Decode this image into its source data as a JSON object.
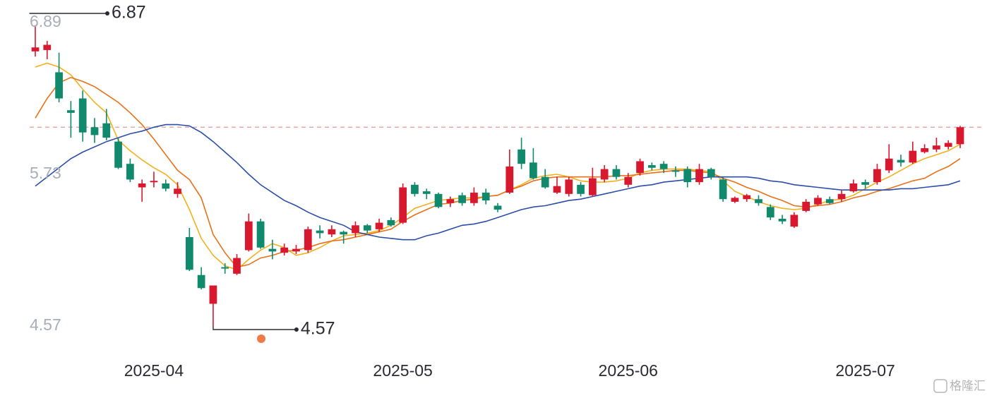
{
  "chart_data": {
    "type": "candlestick",
    "categories": [
      null,
      null,
      null,
      null,
      null,
      null,
      null,
      null,
      null,
      null,
      "2025-04",
      null,
      null,
      null,
      null,
      null,
      null,
      null,
      null,
      null,
      null,
      null,
      null,
      null,
      null,
      null,
      null,
      null,
      null,
      null,
      null,
      "2025-05",
      null,
      null,
      null,
      null,
      null,
      null,
      null,
      null,
      null,
      null,
      null,
      null,
      null,
      null,
      null,
      null,
      null,
      null,
      "2025-06",
      null,
      null,
      null,
      null,
      null,
      null,
      null,
      null,
      null,
      null,
      null,
      null,
      null,
      null,
      null,
      null,
      null,
      null,
      null,
      "2025-07",
      null,
      null,
      null,
      null,
      null,
      null,
      null,
      null
    ],
    "open": [
      6.67,
      6.68,
      6.51,
      6.22,
      6.31,
      6.09,
      6.12,
      5.98,
      5.81,
      5.63,
      5.67,
      5.66,
      5.58,
      5.25,
      4.96,
      4.74,
      5.02,
      4.97,
      5.15,
      5.37,
      5.16,
      5.13,
      5.14,
      5.15,
      5.3,
      5.27,
      5.29,
      5.28,
      5.34,
      5.31,
      5.38,
      5.36,
      5.65,
      5.6,
      5.58,
      5.51,
      5.57,
      5.51,
      5.59,
      5.49,
      5.59,
      5.92,
      5.82,
      5.71,
      5.59,
      5.58,
      5.65,
      5.57,
      5.69,
      5.77,
      5.65,
      5.74,
      5.8,
      5.81,
      5.76,
      5.77,
      5.67,
      5.77,
      5.69,
      5.52,
      5.54,
      5.54,
      5.48,
      5.39,
      5.33,
      5.45,
      5.5,
      5.54,
      5.54,
      5.6,
      5.67,
      5.67,
      5.76,
      5.84,
      5.82,
      5.9,
      5.92,
      5.94,
      5.96
    ],
    "high": [
      6.87,
      6.75,
      6.66,
      6.29,
      6.37,
      6.16,
      6.23,
      6.01,
      5.85,
      5.69,
      5.75,
      5.69,
      5.67,
      5.32,
      5.02,
      4.88,
      5.05,
      5.12,
      5.43,
      5.39,
      5.23,
      5.2,
      5.19,
      5.33,
      5.34,
      5.34,
      5.3,
      5.37,
      5.35,
      5.39,
      5.4,
      5.66,
      5.67,
      5.62,
      5.59,
      5.56,
      5.59,
      5.63,
      5.62,
      5.51,
      5.92,
      6.01,
      5.93,
      5.77,
      5.71,
      5.71,
      5.67,
      5.78,
      5.8,
      5.8,
      5.74,
      5.85,
      5.82,
      5.83,
      5.79,
      5.79,
      5.81,
      5.78,
      5.71,
      5.56,
      5.58,
      5.57,
      5.5,
      5.42,
      5.44,
      5.54,
      5.57,
      5.56,
      5.61,
      5.69,
      5.69,
      5.81,
      5.96,
      5.88,
      5.98,
      5.96,
      6.01,
      5.99,
      6.1
    ],
    "low": [
      6.63,
      6.61,
      6.28,
      6.01,
      5.98,
      5.97,
      5.99,
      5.77,
      5.67,
      5.52,
      5.63,
      5.6,
      5.55,
      4.99,
      4.85,
      4.57,
      4.97,
      4.96,
      5.14,
      5.16,
      5.08,
      5.11,
      5.12,
      5.13,
      5.24,
      5.25,
      5.2,
      5.25,
      5.28,
      5.29,
      5.33,
      5.35,
      5.56,
      5.54,
      5.47,
      5.48,
      5.49,
      5.49,
      5.5,
      5.44,
      5.58,
      5.77,
      5.69,
      5.62,
      5.58,
      5.56,
      5.56,
      5.56,
      5.67,
      5.69,
      5.63,
      5.72,
      5.76,
      5.74,
      5.71,
      5.63,
      5.65,
      5.69,
      5.52,
      5.51,
      5.52,
      5.49,
      5.38,
      5.35,
      5.32,
      5.44,
      5.49,
      5.5,
      5.52,
      5.59,
      5.62,
      5.65,
      5.74,
      5.79,
      5.81,
      5.89,
      5.9,
      5.92,
      5.93
    ],
    "close": [
      6.7,
      6.72,
      6.31,
      6.2,
      6.05,
      6.03,
      6.01,
      5.78,
      5.69,
      5.66,
      5.68,
      5.62,
      5.62,
      5.0,
      4.86,
      4.88,
      5.01,
      5.09,
      5.37,
      5.17,
      5.14,
      5.17,
      5.16,
      5.31,
      5.28,
      5.31,
      5.27,
      5.34,
      5.3,
      5.36,
      5.34,
      5.63,
      5.58,
      5.58,
      5.48,
      5.54,
      5.51,
      5.59,
      5.53,
      5.46,
      5.79,
      5.81,
      5.7,
      5.63,
      5.64,
      5.69,
      5.58,
      5.7,
      5.77,
      5.71,
      5.71,
      5.83,
      5.78,
      5.77,
      5.75,
      5.67,
      5.77,
      5.71,
      5.54,
      5.55,
      5.57,
      5.51,
      5.4,
      5.37,
      5.42,
      5.52,
      5.55,
      5.51,
      5.58,
      5.66,
      5.65,
      5.77,
      5.85,
      5.82,
      5.91,
      5.93,
      5.95,
      5.97,
      6.09
    ],
    "up_color": "#d8182e",
    "down_color": "#10896d",
    "moving_averages": [
      {
        "color": "#f2b01e",
        "values": [
          6.55,
          6.58,
          6.55,
          6.49,
          6.38,
          6.28,
          6.2,
          5.99,
          5.91,
          5.84,
          5.78,
          5.73,
          5.65,
          5.46,
          5.24,
          5.11,
          5.03,
          5.0,
          5.08,
          5.15,
          5.2,
          5.17,
          5.11,
          5.13,
          5.17,
          5.22,
          5.26,
          5.27,
          5.28,
          5.3,
          5.34,
          5.4,
          5.47,
          5.5,
          5.53,
          5.54,
          5.55,
          5.55,
          5.56,
          5.57,
          5.61,
          5.65,
          5.7,
          5.72,
          5.73,
          5.71,
          5.68,
          5.67,
          5.67,
          5.68,
          5.7,
          5.74,
          5.76,
          5.77,
          5.77,
          5.77,
          5.76,
          5.75,
          5.68,
          5.6,
          5.56,
          5.52,
          5.49,
          5.47,
          5.46,
          5.47,
          5.5,
          5.53,
          5.54,
          5.57,
          5.62,
          5.67,
          5.71,
          5.76,
          5.81,
          5.85,
          5.88,
          5.91,
          5.96
        ]
      },
      {
        "color": "#e8701a",
        "values": [
          6.16,
          6.31,
          6.43,
          6.47,
          6.44,
          6.4,
          6.34,
          6.28,
          6.2,
          6.11,
          6.0,
          5.88,
          5.76,
          5.69,
          5.55,
          5.27,
          5.13,
          5.02,
          5.04,
          5.09,
          5.11,
          5.14,
          5.15,
          5.17,
          5.2,
          5.22,
          5.23,
          5.25,
          5.27,
          5.29,
          5.31,
          5.37,
          5.42,
          5.46,
          5.5,
          5.51,
          5.53,
          5.54,
          5.56,
          5.57,
          5.61,
          5.64,
          5.68,
          5.7,
          5.71,
          5.71,
          5.71,
          5.71,
          5.71,
          5.72,
          5.72,
          5.73,
          5.74,
          5.75,
          5.76,
          5.76,
          5.75,
          5.74,
          5.7,
          5.67,
          5.63,
          5.6,
          5.56,
          5.53,
          5.49,
          5.48,
          5.49,
          5.5,
          5.52,
          5.55,
          5.57,
          5.6,
          5.62,
          5.65,
          5.68,
          5.7,
          5.75,
          5.79,
          5.85
        ]
      },
      {
        "color": "#2c4ea8",
        "values": [
          5.64,
          5.71,
          5.78,
          5.85,
          5.9,
          5.94,
          5.98,
          6.01,
          6.04,
          6.06,
          6.09,
          6.11,
          6.11,
          6.1,
          6.05,
          5.98,
          5.9,
          5.82,
          5.73,
          5.65,
          5.59,
          5.53,
          5.49,
          5.44,
          5.4,
          5.37,
          5.34,
          5.29,
          5.27,
          5.25,
          5.24,
          5.23,
          5.23,
          5.26,
          5.28,
          5.31,
          5.34,
          5.35,
          5.37,
          5.4,
          5.43,
          5.46,
          5.48,
          5.49,
          5.51,
          5.53,
          5.54,
          5.56,
          5.58,
          5.6,
          5.62,
          5.64,
          5.65,
          5.67,
          5.68,
          5.69,
          5.7,
          5.71,
          5.71,
          5.71,
          5.71,
          5.7,
          5.68,
          5.67,
          5.65,
          5.64,
          5.63,
          5.62,
          5.61,
          5.61,
          5.61,
          5.61,
          5.61,
          5.62,
          5.62,
          5.63,
          5.64,
          5.65,
          5.68
        ]
      }
    ],
    "ylim": [
      4.57,
      6.89
    ],
    "yticks": [
      4.57,
      5.73,
      6.89
    ],
    "watermark": "格隆汇"
  }
}
